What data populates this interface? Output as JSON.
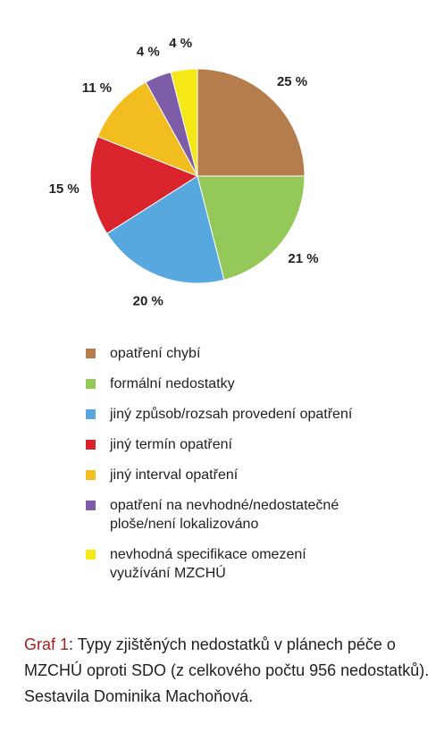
{
  "chart_data": {
    "type": "pie",
    "slices": [
      {
        "label": "opatření chybí",
        "value": 25,
        "display": "25 %",
        "color": "#b47d4b"
      },
      {
        "label": "formální nedostatky",
        "value": 21,
        "display": "21 %",
        "color": "#94c95a"
      },
      {
        "label": "jiný způsob/rozsah provedení opatření",
        "value": 20,
        "display": "20 %",
        "color": "#58a8e0"
      },
      {
        "label": "jiný termín opatření",
        "value": 15,
        "display": "15 %",
        "color": "#d9232d"
      },
      {
        "label": "jiný interval opatření",
        "value": 11,
        "display": "11 %",
        "color": "#f1bd1f"
      },
      {
        "label": "opatření na nevhodné/nedostatečné\nploše/není lokalizováno",
        "value": 4,
        "display": "4 %",
        "color": "#7d5da8"
      },
      {
        "label": "nevhodná specifikace omezení\nvyužívání MZCHÚ",
        "value": 4,
        "display": "4 %",
        "color": "#f4e816"
      }
    ],
    "start": "12 o'clock",
    "direction": "clockwise",
    "legend_position": "below"
  },
  "caption": {
    "prefix": "Graf 1",
    "text": ": Typy zjištěných nedostatků v plánech péče o MZCHÚ oproti SDO (z celkového počtu 956 nedostatků).     Sestavila Dominika Machoňová."
  }
}
